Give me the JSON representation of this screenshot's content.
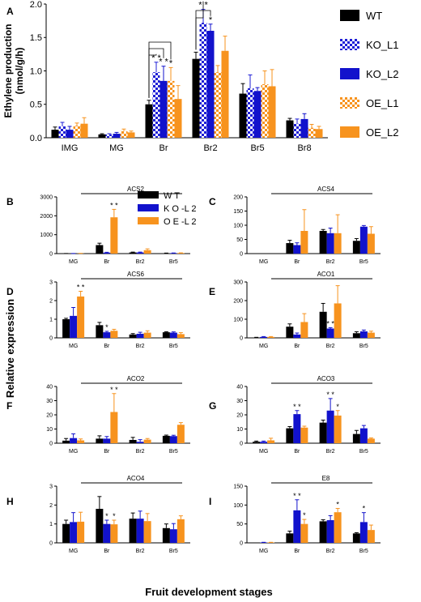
{
  "colors": {
    "WT": "#000000",
    "KO_L1": "#1f1fd6",
    "KO_L2": "#1212cc",
    "OE_L1": "#f7931e",
    "OE_L2": "#f7931e",
    "axis": "#000000"
  },
  "shared_ylabel": "Relative expression",
  "shared_xlabel": "Fruit development stages",
  "chart_data": [
    {
      "type": "bar",
      "panel": "A",
      "title": "",
      "ylabel": "Ethylene production\n(nmol/g/h)",
      "ylim": [
        0,
        2.0
      ],
      "yticks": [
        "0.0",
        "0.5",
        "1.0",
        "1.5",
        "2.0"
      ],
      "categories": [
        "IMG",
        "MG",
        "Br",
        "Br2",
        "Br5",
        "Br8"
      ],
      "legend": [
        "WT",
        "KO_L1",
        "KO_L2",
        "OE_L1",
        "OE_L2"
      ],
      "series": [
        {
          "name": "WT",
          "values": [
            0.12,
            0.05,
            0.5,
            1.18,
            0.66,
            0.26
          ],
          "err": [
            0.04,
            0.01,
            0.06,
            0.1,
            0.15,
            0.03
          ]
        },
        {
          "name": "KO_L1",
          "values": [
            0.17,
            0.05,
            0.98,
            1.72,
            0.74,
            0.21
          ],
          "err": [
            0.06,
            0.01,
            0.15,
            0.2,
            0.2,
            0.07
          ]
        },
        {
          "name": "KO_L2",
          "values": [
            0.12,
            0.06,
            0.85,
            1.6,
            0.7,
            0.28
          ],
          "err": [
            0.05,
            0.02,
            0.22,
            0.1,
            0.05,
            0.08
          ]
        },
        {
          "name": "OE_L1",
          "values": [
            0.18,
            0.1,
            0.85,
            0.98,
            0.8,
            0.15
          ],
          "err": [
            0.04,
            0.03,
            0.2,
            0.1,
            0.2,
            0.05
          ]
        },
        {
          "name": "OE_L2",
          "values": [
            0.21,
            0.08,
            0.58,
            1.3,
            0.77,
            0.13
          ],
          "err": [
            0.09,
            0.02,
            0.2,
            0.22,
            0.25,
            0.04
          ]
        }
      ],
      "sig": [
        {
          "cat": 2,
          "ser": 1,
          "text": "* *"
        },
        {
          "cat": 2,
          "ser": 2,
          "text": "* *"
        },
        {
          "cat": 2,
          "ser": 3,
          "text": "*"
        },
        {
          "cat": 3,
          "ser": 1,
          "text": "* *"
        },
        {
          "cat": 3,
          "ser": 2,
          "text": "*"
        }
      ]
    },
    {
      "type": "bar",
      "panel": "B",
      "title": "ACS2",
      "ylim": [
        0,
        3000
      ],
      "yticks": [
        "0",
        "1000",
        "2000",
        "3000"
      ],
      "categories": [
        "MG",
        "Br",
        "Br2",
        "Br5"
      ],
      "legend": [
        "W T",
        "K O -L 2",
        "O E -L 2"
      ],
      "series": [
        {
          "name": "W T",
          "values": [
            5,
            450,
            60,
            20
          ],
          "err": [
            2,
            100,
            20,
            8
          ]
        },
        {
          "name": "K O -L 2",
          "values": [
            5,
            50,
            60,
            25
          ],
          "err": [
            2,
            20,
            20,
            8
          ]
        },
        {
          "name": "O E -L 2",
          "values": [
            10,
            1920,
            180,
            30
          ],
          "err": [
            4,
            420,
            70,
            10
          ]
        }
      ],
      "sig": [
        {
          "cat": 1,
          "ser": 2,
          "text": "* *"
        }
      ]
    },
    {
      "type": "bar",
      "panel": "C",
      "title": "ACS4",
      "ylim": [
        0,
        200
      ],
      "yticks": [
        "0",
        "50",
        "100",
        "150",
        "200"
      ],
      "categories": [
        "MG",
        "Br",
        "Br2",
        "Br5"
      ],
      "series": [
        {
          "values": [
            0,
            37,
            80,
            45
          ],
          "err": [
            0,
            10,
            5,
            8
          ]
        },
        {
          "values": [
            0,
            30,
            72,
            95
          ],
          "err": [
            0,
            8,
            18,
            4
          ]
        },
        {
          "values": [
            0,
            80,
            72,
            70
          ],
          "err": [
            0,
            75,
            65,
            25
          ]
        }
      ],
      "sig": []
    },
    {
      "type": "bar",
      "panel": "D",
      "title": "ACS6",
      "ylim": [
        0,
        3
      ],
      "yticks": [
        "0",
        "1",
        "2",
        "3"
      ],
      "categories": [
        "MG",
        "Br",
        "Br2",
        "Br5"
      ],
      "series": [
        {
          "values": [
            1.0,
            0.68,
            0.18,
            0.3
          ],
          "err": [
            0.05,
            0.15,
            0.05,
            0.03
          ]
        },
        {
          "values": [
            1.18,
            0.3,
            0.22,
            0.28
          ],
          "err": [
            0.45,
            0.05,
            0.08,
            0.04
          ]
        },
        {
          "values": [
            2.22,
            0.38,
            0.28,
            0.2
          ],
          "err": [
            0.28,
            0.08,
            0.1,
            0.08
          ]
        }
      ],
      "sig": [
        {
          "cat": 0,
          "ser": 2,
          "text": "* *"
        },
        {
          "cat": 1,
          "ser": 1,
          "text": "*"
        }
      ]
    },
    {
      "type": "bar",
      "panel": "E",
      "title": "ACO1",
      "ylim": [
        0,
        300
      ],
      "yticks": [
        "0",
        "100",
        "200",
        "300"
      ],
      "categories": [
        "MG",
        "Br",
        "Br2",
        "Br5"
      ],
      "series": [
        {
          "values": [
            2,
            60,
            140,
            25
          ],
          "err": [
            1,
            15,
            45,
            8
          ]
        },
        {
          "values": [
            5,
            18,
            50,
            35
          ],
          "err": [
            2,
            8,
            5,
            7
          ]
        },
        {
          "values": [
            5,
            85,
            185,
            28
          ],
          "err": [
            2,
            45,
            95,
            8
          ]
        }
      ],
      "sig": [
        {
          "cat": 2,
          "ser": 1,
          "text": "* *"
        }
      ]
    },
    {
      "type": "bar",
      "panel": "F",
      "title": "ACO2",
      "ylim": [
        0,
        40
      ],
      "yticks": [
        "0",
        "10",
        "20",
        "30",
        "40"
      ],
      "categories": [
        "MG",
        "Br",
        "Br2",
        "Br5"
      ],
      "series": [
        {
          "values": [
            1.8,
            3.2,
            2.3,
            5.2
          ],
          "err": [
            1.5,
            2.0,
            1.8,
            0.5
          ]
        },
        {
          "values": [
            3.6,
            3.2,
            1.0,
            5.0
          ],
          "err": [
            3.0,
            1.5,
            1.5,
            0.6
          ]
        },
        {
          "values": [
            2.0,
            22.0,
            2.5,
            13.0
          ],
          "err": [
            1.0,
            13.0,
            0.8,
            1.5
          ]
        }
      ],
      "sig": [
        {
          "cat": 1,
          "ser": 2,
          "text": "* *"
        }
      ]
    },
    {
      "type": "bar",
      "panel": "G",
      "title": "ACO3",
      "ylim": [
        0,
        40
      ],
      "yticks": [
        "0",
        "10",
        "20",
        "30",
        "40"
      ],
      "categories": [
        "MG",
        "Br",
        "Br2",
        "Br5"
      ],
      "series": [
        {
          "values": [
            1.0,
            10.5,
            14.5,
            6.5
          ],
          "err": [
            0.5,
            1.2,
            1.8,
            2.5
          ]
        },
        {
          "values": [
            1.0,
            20.5,
            23.0,
            10.5
          ],
          "err": [
            0.5,
            2.5,
            8.5,
            2.0
          ]
        },
        {
          "values": [
            2.0,
            11.0,
            19.5,
            3.2
          ],
          "err": [
            1.5,
            1.0,
            3.5,
            0.5
          ]
        }
      ],
      "sig": [
        {
          "cat": 1,
          "ser": 1,
          "text": "* *"
        },
        {
          "cat": 2,
          "ser": 1,
          "text": "* *"
        },
        {
          "cat": 2,
          "ser": 2,
          "text": "*"
        }
      ]
    },
    {
      "type": "bar",
      "panel": "H",
      "title": "ACO4",
      "ylim": [
        0,
        3
      ],
      "yticks": [
        "0",
        "1",
        "2",
        "3"
      ],
      "categories": [
        "MG",
        "Br",
        "Br2",
        "Br5"
      ],
      "series": [
        {
          "values": [
            1.0,
            1.8,
            1.28,
            0.78
          ],
          "err": [
            0.2,
            0.65,
            0.3,
            0.22
          ]
        },
        {
          "values": [
            1.1,
            1.0,
            1.28,
            0.72
          ],
          "err": [
            0.5,
            0.2,
            0.4,
            0.3
          ]
        },
        {
          "values": [
            1.12,
            0.98,
            1.15,
            1.25
          ],
          "err": [
            0.5,
            0.22,
            0.4,
            0.18
          ]
        }
      ],
      "sig": [
        {
          "cat": 1,
          "ser": 1,
          "text": "*"
        },
        {
          "cat": 1,
          "ser": 2,
          "text": "*"
        }
      ]
    },
    {
      "type": "bar",
      "panel": "I",
      "title": "E8",
      "ylim": [
        0,
        150
      ],
      "yticks": [
        "0",
        "50",
        "100",
        "150"
      ],
      "categories": [
        "MG",
        "Br",
        "Br2",
        "Br5"
      ],
      "series": [
        {
          "values": [
            0,
            25,
            57,
            25
          ],
          "err": [
            0,
            6,
            4,
            2
          ]
        },
        {
          "values": [
            1,
            86,
            60,
            55
          ],
          "err": [
            0.5,
            28,
            12,
            25
          ]
        },
        {
          "values": [
            1,
            50,
            81,
            34
          ],
          "err": [
            0.5,
            12,
            10,
            13
          ]
        }
      ],
      "sig": [
        {
          "cat": 1,
          "ser": 1,
          "text": "* *"
        },
        {
          "cat": 1,
          "ser": 2,
          "text": "*"
        },
        {
          "cat": 2,
          "ser": 2,
          "text": "*"
        },
        {
          "cat": 3,
          "ser": 1,
          "text": "*"
        }
      ]
    }
  ]
}
